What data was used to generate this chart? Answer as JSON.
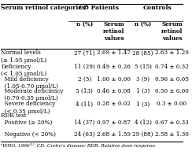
{
  "title": "Serum retinol categories¹",
  "col_headers": [
    "CD Patients",
    "Controls"
  ],
  "sub_headers": [
    "n (%)",
    "Serum\nretinol\nvalues",
    "n (%)",
    "Serum\nretinol\nvalues"
  ],
  "rows": [
    {
      "label": "Normal levels\n(≥ 1.05 μmol/L)",
      "cd_n": "27 (71)",
      "cd_val": "2.69 ± 1.47",
      "ctrl_n": "28 (85)",
      "ctrl_val": "2.63 ± 1.29"
    },
    {
      "label": "Deficiency\n(< 1.05 μmol/L)",
      "cd_n": "11 (29)",
      "cd_val": "0.49 ± 0.26",
      "ctrl_n": "5 (15)",
      "ctrl_val": "0.74 ± 0.32"
    },
    {
      "label": "  Mild deficiency\n  (1.05-0.70 μmol/L)",
      "cd_n": "2 (5)",
      "cd_val": "1.00 ± 0.00",
      "ctrl_n": "3 (9)",
      "ctrl_val": "0.96 ± 0.05"
    },
    {
      "label": "  Moderate deficiency\n  (0.70-0.35 μmol/L)",
      "cd_n": "5 (13)",
      "cd_val": "0.46 ± 0.08",
      "ctrl_n": "1 (3)",
      "ctrl_val": "0.50 ± 0.00"
    },
    {
      "label": "  Severe deficiency\n  (< 0.35 μmol/L)",
      "cd_n": "4 (11)",
      "cd_val": "0.28 ± 0.02",
      "ctrl_n": "1 (3)",
      "ctrl_val": "0.3 ± 0.00"
    },
    {
      "label": "RDR test",
      "cd_n": "",
      "cd_val": "",
      "ctrl_n": "",
      "ctrl_val": ""
    },
    {
      "label": "  Positive (≥ 20%)",
      "cd_n": "14 (37)",
      "cd_val": "0.97 ± 0.87",
      "ctrl_n": "4 (12)",
      "ctrl_val": "0.67 ± 0.33"
    },
    {
      "label": "  Negative (< 20%)",
      "cd_n": "24 (63)",
      "cd_val": "2.68 ± 1.59",
      "ctrl_n": "29 (88)",
      "ctrl_val": "2.58 ± 1.30"
    }
  ],
  "footnote": "ᵃWHO, 1996⁽¹⁾. CD: Crohn’s disease; RDR: Relative dose response.",
  "bg_color": "#ffffff",
  "header_color": "#ffffff",
  "font_size": 5.2,
  "header_font_size": 5.5
}
